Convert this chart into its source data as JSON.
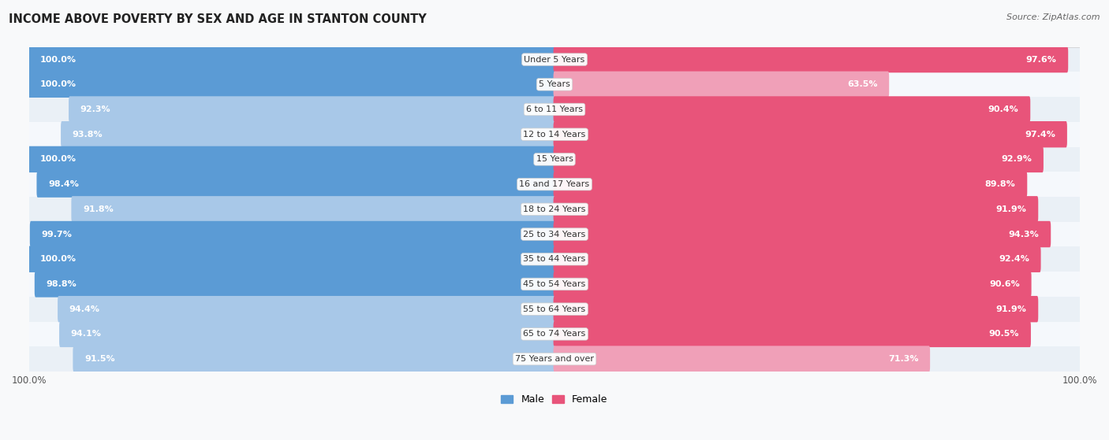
{
  "title": "INCOME ABOVE POVERTY BY SEX AND AGE IN STANTON COUNTY",
  "source": "Source: ZipAtlas.com",
  "categories": [
    "Under 5 Years",
    "5 Years",
    "6 to 11 Years",
    "12 to 14 Years",
    "15 Years",
    "16 and 17 Years",
    "18 to 24 Years",
    "25 to 34 Years",
    "35 to 44 Years",
    "45 to 54 Years",
    "55 to 64 Years",
    "65 to 74 Years",
    "75 Years and over"
  ],
  "male_values": [
    100.0,
    100.0,
    92.3,
    93.8,
    100.0,
    98.4,
    91.8,
    99.7,
    100.0,
    98.8,
    94.4,
    94.1,
    91.5
  ],
  "female_values": [
    97.6,
    63.5,
    90.4,
    97.4,
    92.9,
    89.8,
    91.9,
    94.3,
    92.4,
    90.6,
    91.9,
    90.5,
    71.3
  ],
  "male_color_dark": "#5b9bd5",
  "male_color_light": "#a8c8e8",
  "female_color_dark": "#e8547a",
  "female_color_light": "#f0a0b8",
  "bar_height": 0.62,
  "row_bg_odd": "#eaf0f6",
  "row_bg_even": "#f5f8fc",
  "fig_bg": "#f8f9fa",
  "title_fontsize": 10.5,
  "label_fontsize": 8.0,
  "value_fontsize": 8.0,
  "tick_fontsize": 8.5,
  "legend_fontsize": 9.0
}
